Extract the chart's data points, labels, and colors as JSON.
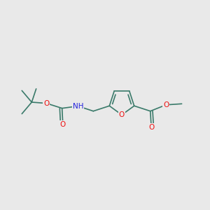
{
  "background_color": "#e9e9e9",
  "bond_color": "#3a7a6a",
  "bond_width": 1.2,
  "atom_colors": {
    "O": "#ee1111",
    "N": "#2222dd",
    "C": "#3a7a6a"
  },
  "font_size": 7.5,
  "figsize": [
    3.0,
    3.0
  ],
  "dpi": 100
}
